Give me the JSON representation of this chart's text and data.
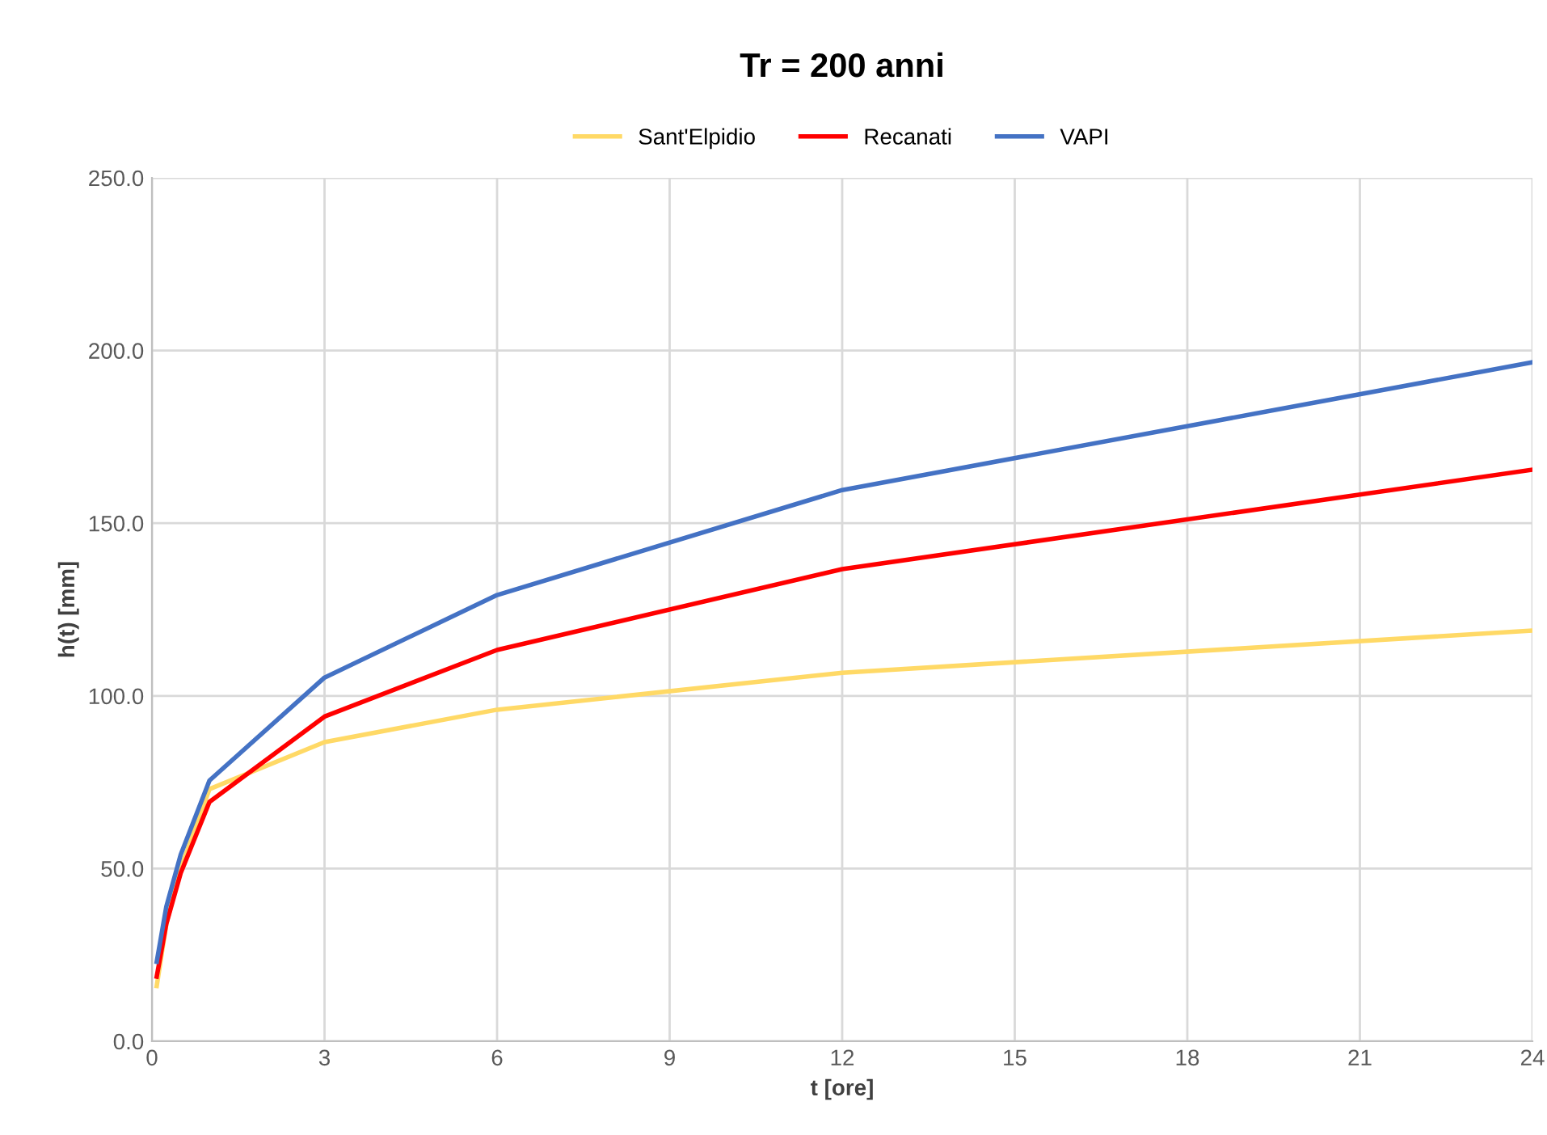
{
  "chart_data": {
    "type": "line",
    "title": "Tr = 200 anni",
    "xlabel": "t [ore]",
    "ylabel": "h(t) [mm]",
    "x": [
      0.083,
      0.25,
      0.5,
      1,
      3,
      6,
      12,
      24
    ],
    "series": [
      {
        "name": "Sant'Elpidio",
        "color": "#ffd966",
        "values": [
          16,
          34,
          50,
          73,
          86.6,
          96,
          106.7,
          118.9
        ]
      },
      {
        "name": "Recanati",
        "color": "#ff0000",
        "values": [
          18.7,
          34,
          48.7,
          69.3,
          94,
          113.3,
          136.7,
          165.5
        ]
      },
      {
        "name": "VAPI",
        "color": "#4472c4",
        "values": [
          23,
          39,
          54,
          75.5,
          105.3,
          129.2,
          159.6,
          196.6
        ]
      }
    ],
    "xlim": [
      0,
      24
    ],
    "xticks": [
      0,
      3,
      6,
      9,
      12,
      15,
      18,
      21,
      24
    ],
    "ylim": [
      0,
      250
    ],
    "yticks": [
      {
        "value": 0,
        "label": "0.0"
      },
      {
        "value": 50,
        "label": "50.0"
      },
      {
        "value": 100,
        "label": "100.0"
      },
      {
        "value": 150,
        "label": "150.0"
      },
      {
        "value": 200,
        "label": "200.0"
      },
      {
        "value": 250,
        "label": "250.0"
      }
    ],
    "grid": true,
    "legend": "top",
    "marker": "none",
    "line_style": "solid"
  }
}
